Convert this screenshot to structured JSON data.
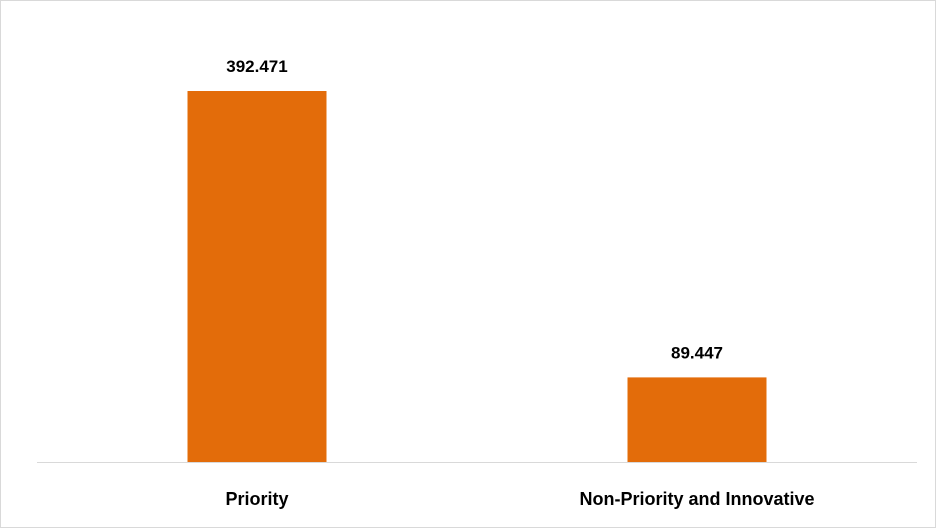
{
  "chart_data": {
    "type": "bar",
    "categories": [
      "Priority",
      "Non-Priority and Innovative"
    ],
    "values": [
      392.471,
      89.447
    ],
    "data_labels": [
      "392.471",
      "89.447"
    ],
    "title": "",
    "xlabel": "",
    "ylabel": "",
    "ylim": [
      0,
      450
    ],
    "y_axis_visible": false,
    "grid": false,
    "legend": "none",
    "bar_color": "#E36C0A",
    "axis_color": "#d9d9d9"
  }
}
